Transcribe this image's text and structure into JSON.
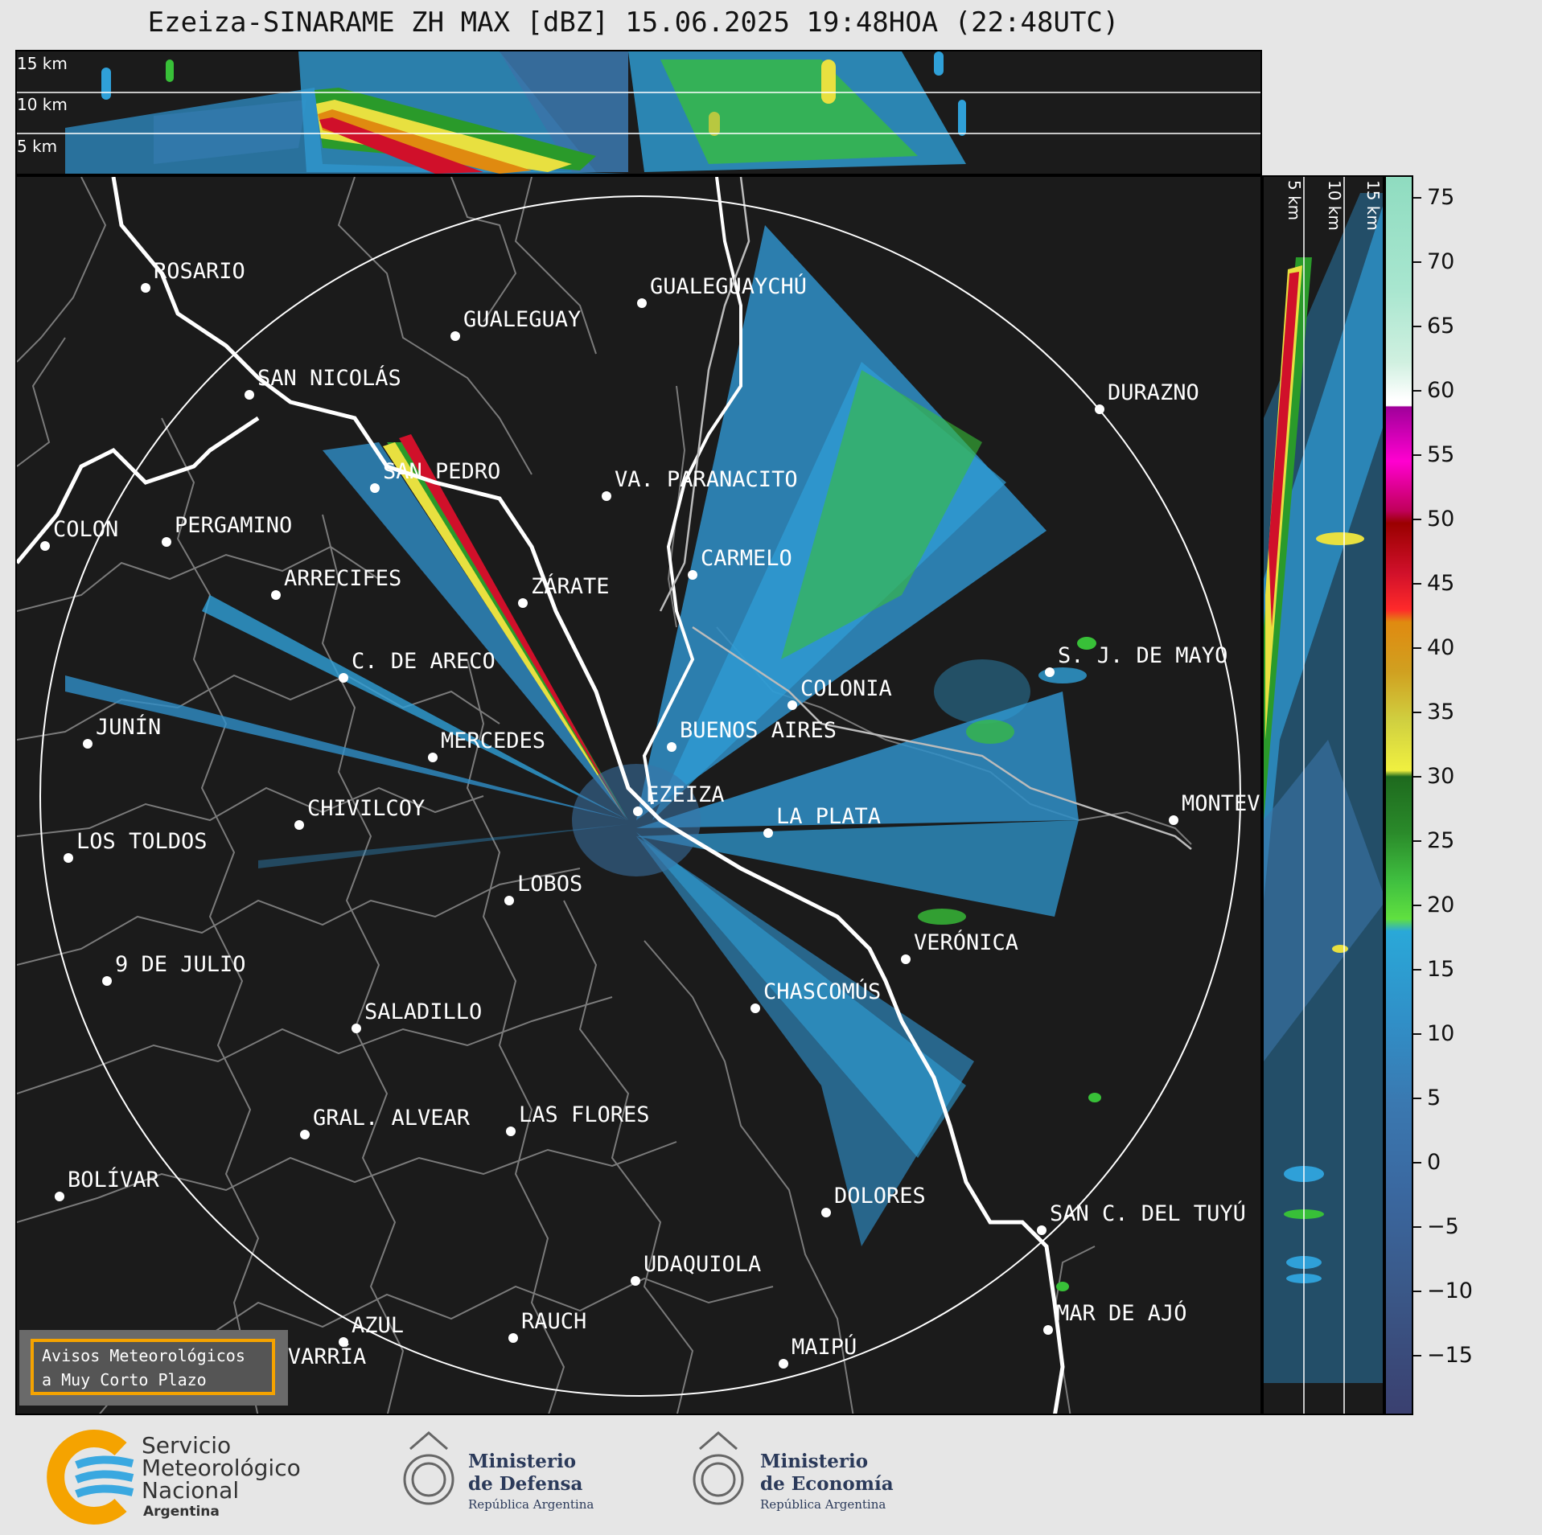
{
  "title": "Ezeiza-SINARAME ZH MAX [dBZ] 15.06.2025 19:48HOA (22:48UTC)",
  "top_panel": {
    "height_labels": [
      "15 km",
      "10 km",
      "5 km"
    ]
  },
  "side_panel": {
    "height_labels": [
      "5 km",
      "10 km",
      "15 km"
    ]
  },
  "colorbar": {
    "ticks": [
      "75",
      "70",
      "65",
      "60",
      "55",
      "50",
      "45",
      "40",
      "35",
      "30",
      "25",
      "20",
      "15",
      "10",
      "5",
      "0",
      "−5",
      "−10",
      "−15"
    ],
    "colors": {
      "high": "#8fdcc0",
      "white": "#ffffff",
      "magenta": "#c000a0",
      "red": "#d0102a",
      "orange": "#e08a10",
      "yellow": "#e8e040",
      "green": "#30b030",
      "lightblue": "#2fa0d8",
      "blue": "#3a74a8",
      "darkblue": "#3a4070"
    }
  },
  "cities": [
    {
      "name": "ROSARIO"
    },
    {
      "name": "GUALEGUAYCHÚ"
    },
    {
      "name": "GUALEGUAY"
    },
    {
      "name": "SAN NICOLÁS"
    },
    {
      "name": "DURAZNO"
    },
    {
      "name": "SAN PEDRO"
    },
    {
      "name": "VA. PARANACITO"
    },
    {
      "name": "COLON"
    },
    {
      "name": "PERGAMINO"
    },
    {
      "name": "CARMELO"
    },
    {
      "name": "ARRECIFES"
    },
    {
      "name": "ZÁRATE"
    },
    {
      "name": "S. J. DE MAYO"
    },
    {
      "name": "C. DE ARECO"
    },
    {
      "name": "COLONIA"
    },
    {
      "name": "JUNÍN"
    },
    {
      "name": "MERCEDES"
    },
    {
      "name": "BUENOS AIRES"
    },
    {
      "name": "EZEIZA"
    },
    {
      "name": "MONTEVIDEO"
    },
    {
      "name": "CHIVILCOY"
    },
    {
      "name": "LA PLATA"
    },
    {
      "name": "LOS TOLDOS"
    },
    {
      "name": "LOBOS"
    },
    {
      "name": "VERÓNICA"
    },
    {
      "name": "9 DE JULIO"
    },
    {
      "name": "CHASCOMÚS"
    },
    {
      "name": "SALADILLO"
    },
    {
      "name": "GRAL. ALVEAR"
    },
    {
      "name": "LAS FLORES"
    },
    {
      "name": "BOLÍVAR"
    },
    {
      "name": "DOLORES"
    },
    {
      "name": "SAN C. DEL TUYÚ"
    },
    {
      "name": "UDAQUIOLA"
    },
    {
      "name": "MAR DE AJÓ"
    },
    {
      "name": "AZUL"
    },
    {
      "name": "RAUCH"
    },
    {
      "name": "MAIPÚ"
    },
    {
      "name": "OLAVARRÍA"
    }
  ],
  "avisos_button": {
    "line1": "Avisos Meteorológicos",
    "line2": "a Muy Corto Plazo"
  },
  "footer": {
    "smn": {
      "line1": "Servicio",
      "line2": "Meteorológico",
      "line3": "Nacional",
      "line4": "Argentina"
    },
    "defensa": {
      "line1": "Ministerio",
      "line2": "de Defensa",
      "line3": "República Argentina"
    },
    "economia": {
      "line1": "Ministerio",
      "line2": "de Economía",
      "line3": "República Argentina"
    }
  }
}
